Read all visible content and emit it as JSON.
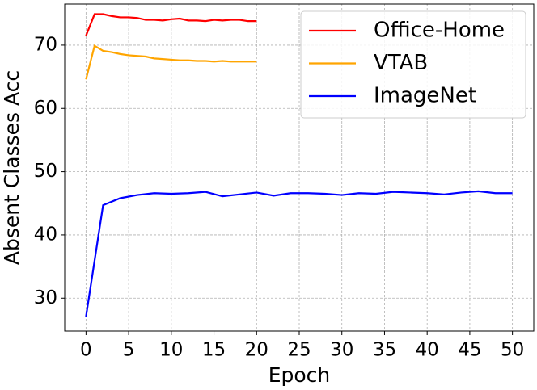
{
  "chart_data": {
    "type": "line",
    "xlabel": "Epoch",
    "ylabel": "Absent Classes Acc",
    "xlim": [
      -2.5,
      52.5
    ],
    "ylim": [
      24.8,
      76.5
    ],
    "xticks": [
      0,
      5,
      10,
      15,
      20,
      25,
      30,
      35,
      40,
      45,
      50
    ],
    "yticks": [
      30,
      40,
      50,
      60,
      70
    ],
    "grid": true,
    "legend": "upper right",
    "series": [
      {
        "name": "Office-Home",
        "color": "#ff0000",
        "x": [
          0,
          1,
          2,
          3,
          4,
          5,
          6,
          7,
          8,
          9,
          10,
          11,
          12,
          13,
          14,
          15,
          16,
          17,
          18,
          19,
          20
        ],
        "values": [
          71.5,
          74.9,
          74.9,
          74.6,
          74.4,
          74.4,
          74.3,
          74.0,
          74.0,
          73.9,
          74.1,
          74.2,
          73.9,
          73.9,
          73.8,
          74.0,
          73.9,
          74.0,
          74.0,
          73.8,
          73.8
        ]
      },
      {
        "name": "VTAB",
        "color": "#ffa500",
        "x": [
          0,
          1,
          2,
          3,
          4,
          5,
          6,
          7,
          8,
          9,
          10,
          11,
          12,
          13,
          14,
          15,
          16,
          17,
          18,
          19,
          20
        ],
        "values": [
          64.6,
          69.9,
          69.1,
          68.9,
          68.6,
          68.4,
          68.3,
          68.2,
          67.9,
          67.8,
          67.7,
          67.6,
          67.6,
          67.5,
          67.5,
          67.4,
          67.5,
          67.4,
          67.4,
          67.4,
          67.4
        ]
      },
      {
        "name": "ImageNet",
        "color": "#0000ff",
        "x": [
          0,
          2,
          4,
          6,
          8,
          10,
          12,
          14,
          16,
          18,
          20,
          22,
          24,
          26,
          28,
          30,
          32,
          34,
          36,
          38,
          40,
          42,
          44,
          46,
          48,
          50
        ],
        "values": [
          27.1,
          44.7,
          45.8,
          46.3,
          46.6,
          46.5,
          46.6,
          46.8,
          46.1,
          46.4,
          46.7,
          46.2,
          46.6,
          46.6,
          46.5,
          46.3,
          46.6,
          46.5,
          46.8,
          46.7,
          46.6,
          46.4,
          46.7,
          46.9,
          46.6,
          46.6
        ]
      }
    ]
  }
}
